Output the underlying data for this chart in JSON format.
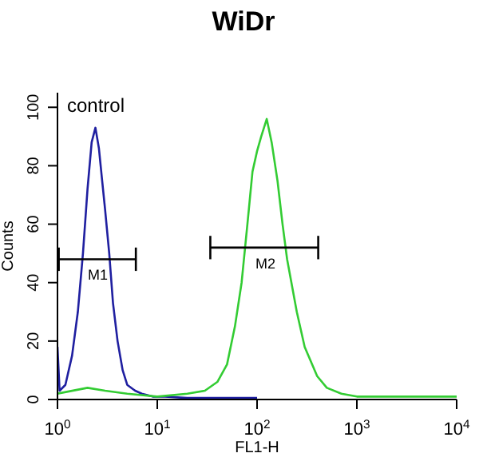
{
  "chart_data": {
    "type": "line",
    "title": "WiDr",
    "xlabel": "FL1-H",
    "ylabel": "Counts",
    "log": "x",
    "xlim": [
      1,
      10000
    ],
    "xticks": [
      {
        "value": 1,
        "label": "10$^{0}$"
      },
      {
        "value": 10,
        "label": "10$^{1}$"
      },
      {
        "value": 100,
        "label": "10$^{2}$"
      },
      {
        "value": 1000,
        "label": "10$^{3}$"
      },
      {
        "value": 10000,
        "label": "10$^{4}$"
      }
    ],
    "ylim": [
      0,
      105
    ],
    "yticks": [
      0,
      20,
      40,
      60,
      80,
      100
    ],
    "grid": false,
    "marker": "none",
    "line_style": "solid",
    "series": [
      {
        "color": "#1f1fa0",
        "x": [
          1,
          1.05,
          1.2,
          1.4,
          1.6,
          1.8,
          2.0,
          2.2,
          2.4,
          2.6,
          2.8,
          3.0,
          3.3,
          3.6,
          4.0,
          4.5,
          5,
          6,
          7,
          9,
          12,
          20,
          50,
          100
        ],
        "values": [
          18,
          3,
          5,
          15,
          30,
          50,
          72,
          88,
          93,
          86,
          75,
          65,
          50,
          33,
          20,
          10,
          5,
          3,
          2,
          1,
          1,
          0.5,
          0.5,
          0.5
        ]
      },
      {
        "color": "#33cc33",
        "x": [
          1,
          2,
          3,
          5,
          10,
          20,
          30,
          40,
          50,
          60,
          70,
          80,
          90,
          100,
          110,
          125,
          140,
          160,
          180,
          200,
          250,
          300,
          400,
          500,
          700,
          1000,
          3000,
          10000
        ],
        "values": [
          2,
          4,
          3,
          2,
          1,
          2,
          3,
          6,
          12,
          25,
          40,
          60,
          78,
          85,
          90,
          96,
          88,
          75,
          60,
          48,
          30,
          18,
          8,
          4,
          2,
          1,
          1,
          1
        ]
      },
      {
        "color": "#000000",
        "x": [
          1.03,
          6.1
        ],
        "values": [
          48,
          48
        ],
        "errors": [
          4,
          4
        ]
      },
      {
        "color": "#000000",
        "x": [
          34,
          410
        ],
        "values": [
          52,
          52
        ],
        "errors": [
          4,
          4
        ]
      }
    ],
    "annotations": [
      "control",
      "M1",
      "M2"
    ]
  }
}
